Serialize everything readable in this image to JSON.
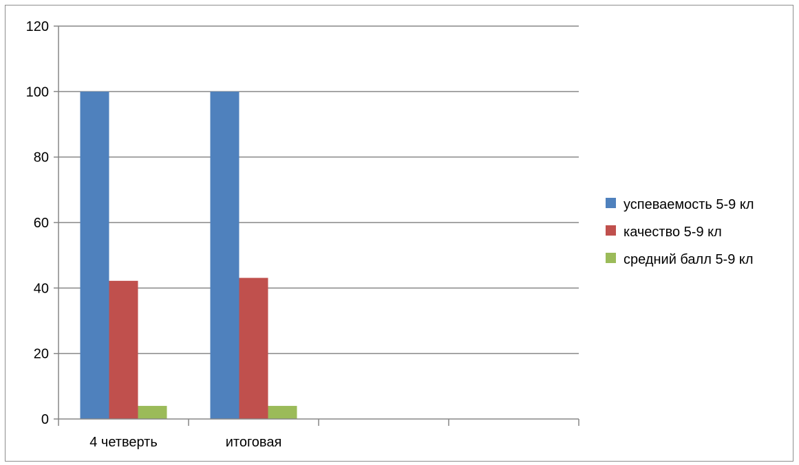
{
  "chart_data": {
    "type": "bar",
    "title": "",
    "xlabel": "",
    "ylabel": "",
    "categories": [
      "4 четверть",
      "итоговая",
      "",
      ""
    ],
    "series": [
      {
        "name": "успеваемость 5-9 кл",
        "color": "#4f81bd",
        "values": [
          100,
          100,
          null,
          null
        ]
      },
      {
        "name": "качество 5-9 кл",
        "color": "#c0504d",
        "values": [
          42.2,
          43.1,
          null,
          null
        ]
      },
      {
        "name": "средний балл 5-9 кл",
        "color": "#9bbb59",
        "values": [
          4,
          4,
          null,
          null
        ]
      }
    ],
    "ylim": [
      0,
      120
    ],
    "yticks": [
      0,
      20,
      40,
      60,
      80,
      100,
      120
    ],
    "grid": true,
    "legend": "right",
    "gridColor": "#868686",
    "axisColor": "#868686"
  }
}
